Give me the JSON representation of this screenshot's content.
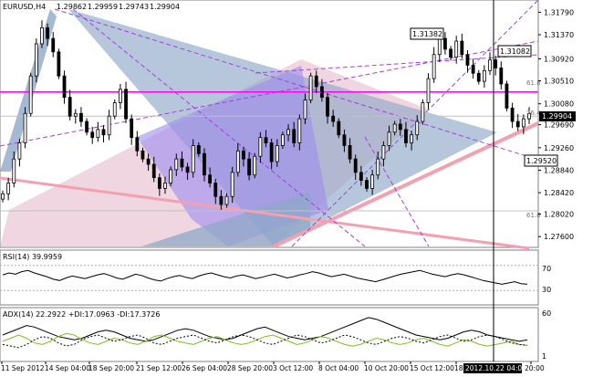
{
  "header": {
    "symbol": "EURUSD,H4",
    "open": "1.29862",
    "high": "1.29959",
    "low": "1.29743",
    "close": "1.29904"
  },
  "colors": {
    "candle": "#000000",
    "price_line": "#c0c0c0",
    "fib_line": "#ff00ff",
    "blue_shape": "#8fa8c8",
    "violet_shape": "#9c8cf0",
    "pink_shape": "#e8b8c8",
    "trend_pink": "#f4a0b0",
    "rsi_line": "#000000",
    "adx_line": "#000000",
    "di_plus": "#7fbf20",
    "di_minus": "#000000"
  },
  "chart_data": [
    {
      "type": "candlestick",
      "ylim": [
        1.2745,
        1.3195
      ],
      "y_ticks": [
        "1.31790",
        "1.31370",
        "1.30920",
        "1.30510",
        "1.30080",
        "1.29690",
        "1.29260",
        "1.28840",
        "1.28420",
        "1.28020",
        "1.27600"
      ],
      "current_price": "1.29904",
      "labels": {
        "high_1": "1.31382",
        "high_2": "1.31082",
        "low_1": "1.29520",
        "fib_upper": "61.8",
        "fib_mid": "76.4",
        "fib_lower": "61.8"
      },
      "fib_levels": [
        1.303,
        1.2985,
        1.2808
      ],
      "close_series": [
        1.284,
        1.286,
        1.2905,
        1.2935,
        1.299,
        1.306,
        1.312,
        1.315,
        1.313,
        1.3105,
        1.306,
        1.302,
        1.2985,
        1.299,
        1.2975,
        1.2955,
        1.2945,
        1.296,
        1.295,
        1.2985,
        1.301,
        1.3035,
        1.298,
        1.2945,
        1.292,
        1.2905,
        1.2895,
        1.287,
        1.285,
        1.286,
        1.2885,
        1.2905,
        1.289,
        1.288,
        1.293,
        1.2915,
        1.2875,
        1.286,
        1.2835,
        1.282,
        1.2835,
        1.288,
        1.292,
        1.2905,
        1.2875,
        1.291,
        1.2945,
        1.2935,
        1.29,
        1.293,
        1.295,
        1.296,
        1.2935,
        1.298,
        1.3015,
        1.306,
        1.304,
        1.302,
        1.2985,
        1.2975,
        1.295,
        1.293,
        1.2905,
        1.288,
        1.2865,
        1.285,
        1.2875,
        1.2905,
        1.293,
        1.2955,
        1.297,
        1.296,
        1.2935,
        1.295,
        1.2975,
        1.301,
        1.3055,
        1.31,
        1.313,
        1.311,
        1.3095,
        1.3125,
        1.31,
        1.308,
        1.3065,
        1.305,
        1.307,
        1.309,
        1.3075,
        1.3045,
        1.3,
        1.2975,
        1.2965,
        1.298,
        1.299
      ],
      "x_ticks": [
        "11 Sep 2012",
        "14 Sep 04:00",
        "18 Sep 20:00",
        "21 Sep 12:00",
        "26 Sep 04:00",
        "28 Sep 20:00",
        "3 Oct 12:00",
        "8 Oct 04:00",
        "10 Oct 20:00",
        "15 Oct 12:00",
        "18 Oct 04:00",
        "23 Oct 20:00"
      ],
      "cursor_label": "2012.10.22 04:00"
    },
    {
      "type": "line",
      "title": "RSI(14) 39.9959",
      "ylim": [
        10,
        90
      ],
      "y_ticks": [
        "70",
        "30"
      ],
      "levels": [
        70,
        30
      ],
      "values": [
        55,
        58,
        56,
        60,
        62,
        58,
        55,
        52,
        48,
        46,
        50,
        53,
        51,
        49,
        52,
        55,
        57,
        54,
        50,
        48,
        52,
        56,
        54,
        50,
        47,
        45,
        49,
        52,
        54,
        51,
        49,
        53,
        56,
        58,
        55,
        52,
        50,
        53,
        55,
        52,
        49,
        51,
        54,
        56,
        53,
        50,
        52,
        55,
        57,
        60,
        58,
        55,
        52,
        54,
        56,
        53,
        50,
        48,
        46,
        44,
        47,
        50,
        53,
        56,
        58,
        60,
        62,
        59,
        56,
        54,
        52,
        55,
        57,
        55,
        52,
        49,
        46,
        44,
        42,
        40,
        42,
        44,
        41,
        40
      ]
    },
    {
      "type": "line",
      "title": "ADX(14) 22.2922 +DI:17.0963 -DI:17.3726",
      "y_ticks": [
        "60",
        "1"
      ],
      "adx": [
        30,
        34,
        38,
        42,
        40,
        36,
        32,
        28,
        26,
        24,
        26,
        30,
        34,
        36,
        34,
        30,
        26,
        24,
        22,
        24,
        28,
        32,
        36,
        38,
        36,
        32,
        28,
        26,
        24,
        26,
        30,
        34,
        38,
        40,
        36,
        32,
        28,
        26,
        24,
        26,
        28,
        32,
        36,
        40,
        44,
        48,
        52,
        50,
        46,
        42,
        38,
        34,
        30,
        28,
        26,
        24,
        26,
        30,
        34,
        36,
        34,
        30,
        28,
        26,
        24,
        22,
        24
      ],
      "di_plus": [
        22,
        26,
        30,
        26,
        20,
        18,
        22,
        28,
        32,
        30,
        24,
        20,
        18,
        22,
        26,
        24,
        20,
        18,
        22,
        28,
        30,
        26,
        22,
        20,
        18,
        22,
        26,
        28,
        24,
        20,
        18,
        20,
        24,
        28,
        30,
        26,
        22,
        18,
        20,
        24,
        28,
        26,
        22,
        18,
        16,
        18,
        22,
        26,
        24,
        20,
        18,
        20,
        24,
        26,
        22,
        18,
        16,
        20,
        24,
        22,
        18,
        16,
        18,
        20,
        22,
        18,
        17
      ],
      "di_minus": [
        18,
        16,
        14,
        18,
        24,
        28,
        26,
        20,
        16,
        18,
        24,
        28,
        30,
        26,
        22,
        24,
        28,
        30,
        26,
        20,
        18,
        22,
        26,
        28,
        30,
        26,
        22,
        20,
        24,
        28,
        30,
        28,
        24,
        20,
        18,
        22,
        26,
        30,
        28,
        24,
        20,
        22,
        26,
        30,
        28,
        24,
        20,
        18,
        22,
        26,
        28,
        26,
        22,
        20,
        24,
        28,
        30,
        26,
        22,
        24,
        28,
        30,
        28,
        24,
        20,
        18,
        17
      ]
    }
  ]
}
